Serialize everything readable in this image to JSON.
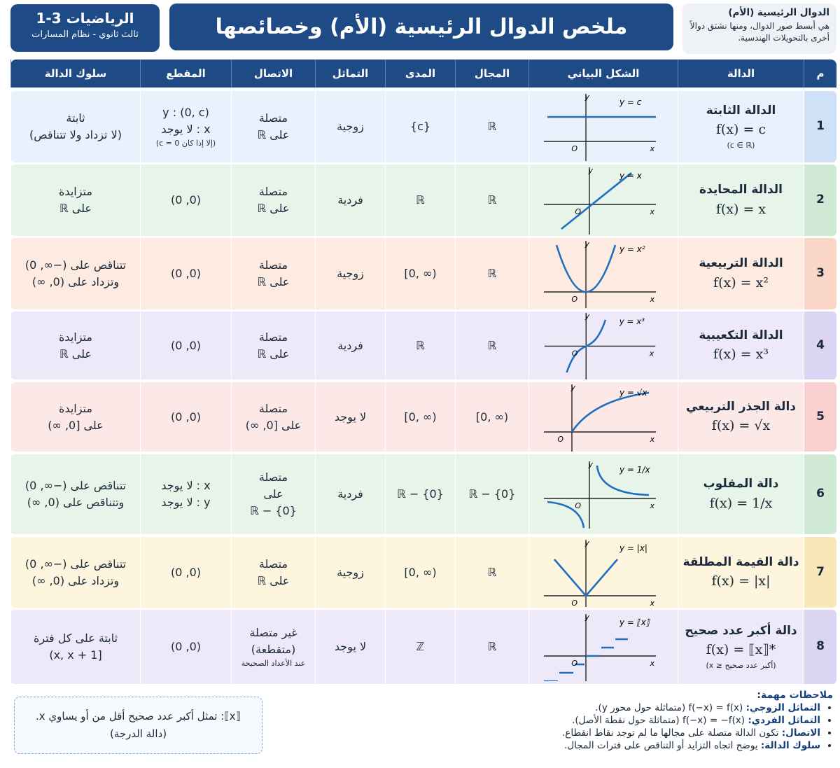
{
  "header": {
    "subject": "الرياضيات 3-1",
    "grade": "ثالث ثانوي - نظام المسارات",
    "title": "ملخص الدوال الرئيسية (الأم) وخصائصها",
    "intro_title": "الدوال الرئيسية (الأم)",
    "intro_text": "هي أبسط صور الدوال، ومنها نشتق دوالاً أخرى بالتحويلات الهندسية."
  },
  "table": {
    "columns": [
      "م",
      "الدالة",
      "الشكل البياني",
      "المجال",
      "المدى",
      "التماثل",
      "الاتصال",
      "المقطع",
      "سلوك الدالة"
    ],
    "axes": {
      "x": "x",
      "y": "y",
      "origin": "O"
    },
    "rows": [
      {
        "number": "1",
        "name": "الدالة الثابتة",
        "formula": "f(x) = c",
        "note": "(c ∈ ℝ)",
        "graph_label": "y = c",
        "domain": "ℝ",
        "range": "{c}",
        "symmetry": "زوجية",
        "continuity": [
          "متصلة",
          "على ℝ"
        ],
        "intercepts": [
          "y : (0, c)",
          "x : لا يوجد",
          "(إلا إذا كان c = 0)"
        ],
        "behavior": [
          "ثابتة",
          "(لا تزداد ولا تتناقص)"
        ]
      },
      {
        "number": "2",
        "name": "الدالة المحايدة",
        "formula": "f(x) = x",
        "graph_label": "y = x",
        "domain": "ℝ",
        "range": "ℝ",
        "symmetry": "فردية",
        "continuity": [
          "متصلة",
          "على ℝ"
        ],
        "intercepts": [
          "(0, 0)"
        ],
        "behavior": [
          "متزايدة",
          "على ℝ"
        ]
      },
      {
        "number": "3",
        "name": "الدالة التربيعية",
        "formula": "f(x) = x²",
        "graph_label": "y = x²",
        "domain": "ℝ",
        "range": "[0, ∞)",
        "symmetry": "زوجية",
        "continuity": [
          "متصلة",
          "على ℝ"
        ],
        "intercepts": [
          "(0, 0)"
        ],
        "behavior": [
          "تتناقص على (−∞, 0)",
          "وتزداد على (0, ∞)"
        ]
      },
      {
        "number": "4",
        "name": "الدالة التكعيبية",
        "formula": "f(x) = x³",
        "graph_label": "y = x³",
        "domain": "ℝ",
        "range": "ℝ",
        "symmetry": "فردية",
        "continuity": [
          "متصلة",
          "على ℝ"
        ],
        "intercepts": [
          "(0, 0)"
        ],
        "behavior": [
          "متزايدة",
          "على ℝ"
        ]
      },
      {
        "number": "5",
        "name": "دالة الجذر التربيعي",
        "formula": "f(x) = √x",
        "graph_label": "y = √x",
        "domain": "[0, ∞)",
        "range": "[0, ∞)",
        "symmetry": "لا يوجد",
        "continuity": [
          "متصلة",
          "على [0, ∞)"
        ],
        "intercepts": [
          "(0, 0)"
        ],
        "behavior": [
          "متزايدة",
          "على [0, ∞)"
        ]
      },
      {
        "number": "6",
        "name": "دالة المقلوب",
        "formula": "f(x) = 1/x",
        "graph_label": "y = 1/x",
        "domain": "ℝ − {0}",
        "range": "ℝ − {0}",
        "symmetry": "فردية",
        "continuity": [
          "متصلة",
          "على",
          "ℝ − {0}"
        ],
        "intercepts": [
          "x : لا يوجد",
          "y : لا يوجد"
        ],
        "behavior": [
          "تتناقص على (−∞, 0)",
          "وتتناقص على (0, ∞)"
        ]
      },
      {
        "number": "7",
        "name": "دالة القيمة المطلقة",
        "formula": "f(x) = |x|",
        "graph_label": "y = |x|",
        "domain": "ℝ",
        "range": "[0, ∞)",
        "symmetry": "زوجية",
        "continuity": [
          "متصلة",
          "على ℝ"
        ],
        "intercepts": [
          "(0, 0)"
        ],
        "behavior": [
          "تتناقص على (−∞, 0)",
          "وتزداد على (0, ∞)"
        ]
      },
      {
        "number": "8",
        "name": "دالة أكبر عدد صحيح",
        "formula": "f(x) = ⟦x⟧*",
        "note": "(أكبر عدد صحيح ≤ x)",
        "graph_label": "y = ⟦x⟧",
        "domain": "ℝ",
        "range": "ℤ",
        "symmetry": "لا يوجد",
        "continuity": [
          "غير متصلة",
          "(متقطعة)",
          "عند الأعداد الصحيحة"
        ],
        "intercepts": [
          "(0, 0)"
        ],
        "behavior": [
          "ثابتة على كل فترة",
          "[x, x + 1)"
        ]
      }
    ]
  },
  "notes": {
    "title": "ملاحظات مهمة:",
    "items": [
      {
        "term": "التماثل الزوجي:",
        "text": "f(−x) = f(x)  (متماثلة حول محور y)."
      },
      {
        "term": "التماثل الفردي:",
        "text": "f(−x) = −f(x)  (متماثلة حول نقطة الأصل)."
      },
      {
        "term": "الاتصال:",
        "text": "تكون الدالة متصلة على مجالها ما لم توجد نقاط انقطاع."
      },
      {
        "term": "سلوك الدالة:",
        "text": "يوضح اتجاه التزايد أو التناقص على فترات المجال."
      }
    ]
  },
  "callout": [
    "⟦x⟧: تمثل أكبر عدد صحيح أقل من أو يساوي x.",
    "(دالة الدرجة)"
  ]
}
